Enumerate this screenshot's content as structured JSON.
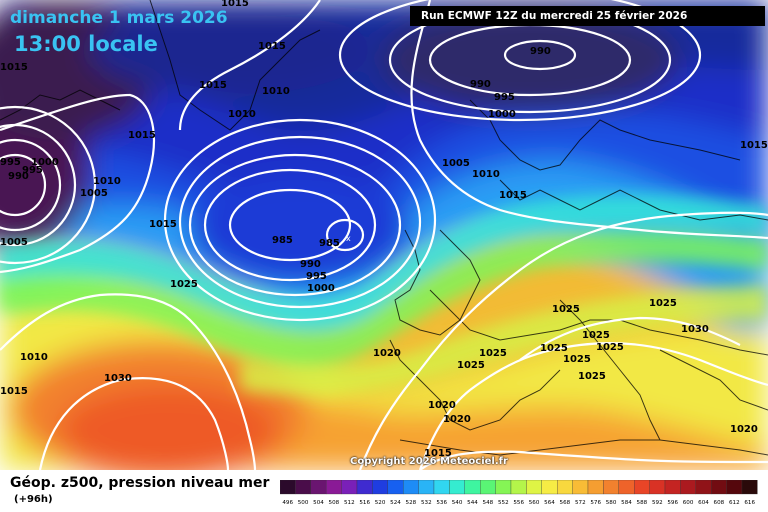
{
  "header": {
    "date_label": "dimanche 1 mars 2026",
    "time_label": "13:00 locale",
    "run_label": "Run ECMWF 12Z du mercredi 25 février 2026"
  },
  "footer": {
    "title": "Géop. z500, pression niveau mer",
    "forecast_hour": "(+96h)",
    "copyright": "Copyright 2026 Meteociel.fr"
  },
  "legend": {
    "ticks": [
      "496",
      "500",
      "504",
      "508",
      "512",
      "516",
      "520",
      "524",
      "528",
      "532",
      "536",
      "540",
      "544",
      "548",
      "552",
      "556",
      "560",
      "564",
      "568",
      "572",
      "576",
      "580",
      "584",
      "588",
      "592",
      "596",
      "600",
      "604",
      "608",
      "612",
      "616"
    ],
    "colors": [
      "#2b0a2b",
      "#4a0d4a",
      "#6a1570",
      "#8a1a96",
      "#7a20b8",
      "#3f2bd0",
      "#1f3de0",
      "#1760f0",
      "#1e8cf6",
      "#29b4f6",
      "#31d6f0",
      "#35ecd0",
      "#3ef5a0",
      "#5af575",
      "#85f555",
      "#b4f54a",
      "#dff445",
      "#f6ec45",
      "#f8d83e",
      "#f8bc36",
      "#f59e31",
      "#f2812e",
      "#ee632a",
      "#e84527",
      "#d93225",
      "#c42422",
      "#ab1a1f",
      "#901318",
      "#720c12",
      "#55070c",
      "#2a0a0a"
    ]
  },
  "isobars": [
    {
      "text": "1015"
    },
    {
      "text": "1015"
    },
    {
      "text": "1015"
    },
    {
      "text": "1015"
    },
    {
      "text": "1010"
    },
    {
      "text": "1010"
    },
    {
      "text": "1015"
    },
    {
      "text": "995"
    },
    {
      "text": "1000"
    },
    {
      "text": "995"
    },
    {
      "text": "990"
    },
    {
      "text": "1005"
    },
    {
      "text": "1010"
    },
    {
      "text": "1005"
    },
    {
      "text": "990"
    },
    {
      "text": "990"
    },
    {
      "text": "995"
    },
    {
      "text": "1000"
    },
    {
      "text": "1005"
    },
    {
      "text": "1010"
    },
    {
      "text": "1015"
    },
    {
      "text": "1015"
    },
    {
      "text": "985"
    },
    {
      "text": "985"
    },
    {
      "text": "990"
    },
    {
      "text": "995"
    },
    {
      "text": "1000"
    },
    {
      "text": "1015"
    },
    {
      "text": "1025"
    },
    {
      "text": "1010"
    },
    {
      "text": "1030"
    },
    {
      "text": "1015"
    },
    {
      "text": "1020"
    },
    {
      "text": "1025"
    },
    {
      "text": "1025"
    },
    {
      "text": "1025"
    },
    {
      "text": "1025"
    },
    {
      "text": "1030"
    },
    {
      "text": "1025"
    },
    {
      "text": "1025"
    },
    {
      "text": "1025"
    },
    {
      "text": "1025"
    },
    {
      "text": "1025"
    },
    {
      "text": "1020"
    },
    {
      "text": "1020"
    },
    {
      "text": "1015"
    },
    {
      "text": "1020"
    }
  ]
}
